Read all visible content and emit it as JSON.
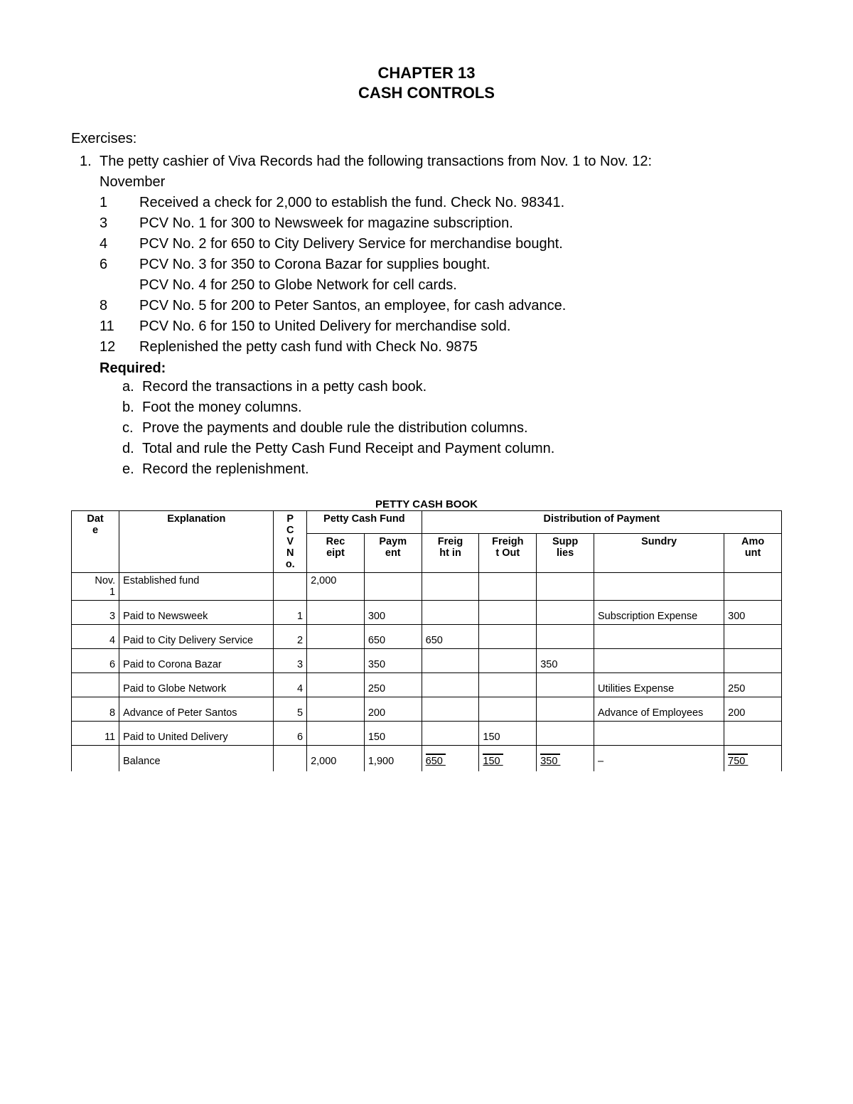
{
  "chapter_title": "CHAPTER 13",
  "chapter_subtitle": "CASH CONTROLS",
  "exercises_label": "Exercises:",
  "exercise": {
    "num": "1.",
    "intro": "The petty cashier of Viva Records had the following transactions from Nov. 1 to Nov. 12:",
    "month": "November",
    "lines": [
      {
        "date": "1",
        "text": "Received a check for 2,000 to establish the fund. Check No. 98341."
      },
      {
        "date": "3",
        "text": "PCV No. 1 for 300 to Newsweek for magazine subscription."
      },
      {
        "date": "4",
        "text": "PCV No. 2 for 650 to City Delivery Service for merchandise bought."
      },
      {
        "date": "6",
        "text": "PCV No. 3 for 350 to Corona Bazar for supplies bought."
      },
      {
        "date": "",
        "text": "PCV No. 4 for 250 to Globe Network for cell cards."
      },
      {
        "date": "8",
        "text": "PCV No. 5 for 200 to Peter Santos, an employee, for cash advance."
      },
      {
        "date": "11",
        "text": "PCV No. 6 for 150 to United Delivery for merchandise sold."
      },
      {
        "date": "12",
        "text": "Replenished the petty cash fund with Check No. 9875"
      }
    ],
    "required_label": "Required:",
    "required": [
      {
        "letter": "a.",
        "text": "Record the transactions in a petty cash book."
      },
      {
        "letter": "b.",
        "text": "Foot the money columns."
      },
      {
        "letter": "c.",
        "text": "Prove the payments and double rule the distribution columns."
      },
      {
        "letter": "d.",
        "text": "Total and rule the Petty Cash Fund Receipt and Payment column."
      },
      {
        "letter": "e.",
        "text": "Record the replenishment."
      }
    ]
  },
  "table": {
    "title": "PETTY CASH BOOK",
    "headers": {
      "date": "Dat\ne",
      "explanation": "Explanation",
      "pcvno": "P\nC\nV\nN\no.",
      "pcf": "Petty Cash Fund",
      "receipt": "Rec\neipt",
      "payment": "Paym\nent",
      "dist": "Distribution of Payment",
      "freight_in": "Freig\nht in",
      "freight_out": "Freigh\nt Out",
      "supplies": "Supp\nlies",
      "sundry": "Sundry",
      "amount": "Amo\nunt"
    },
    "rows": [
      {
        "date": "Nov. 1",
        "exp": "Established fund",
        "pcv": "",
        "receipt": "2,000",
        "payment": "",
        "fi": "",
        "fo": "",
        "sup": "",
        "sundry": "",
        "amt": ""
      },
      {
        "date": "3",
        "exp": "Paid to Newsweek",
        "pcv": "1",
        "receipt": "",
        "payment": "300",
        "fi": "",
        "fo": "",
        "sup": "",
        "sundry": "Subscription Expense",
        "amt": "300"
      },
      {
        "date": "4",
        "exp": "Paid to City Delivery Service",
        "pcv": "2",
        "receipt": "",
        "payment": "650",
        "fi": "650",
        "fo": "",
        "sup": "",
        "sundry": "",
        "amt": ""
      },
      {
        "date": "6",
        "exp": "Paid to Corona Bazar",
        "pcv": "3",
        "receipt": "",
        "payment": "350",
        "fi": "",
        "fo": "",
        "sup": "350",
        "sundry": "",
        "amt": ""
      },
      {
        "date": "",
        "exp": "Paid to Globe Network",
        "pcv": "4",
        "receipt": "",
        "payment": "250",
        "fi": "",
        "fo": "",
        "sup": "",
        "sundry": "Utilities Expense",
        "amt": "250"
      },
      {
        "date": "8",
        "exp": "Advance of Peter Santos",
        "pcv": "5",
        "receipt": "",
        "payment": "200",
        "fi": "",
        "fo": "",
        "sup": "",
        "sundry": "Advance of Employees",
        "amt": "200"
      },
      {
        "date": "11",
        "exp": "Paid to United Delivery",
        "pcv": "6",
        "receipt": "",
        "payment": "150",
        "fi": "",
        "fo": "150",
        "sup": "",
        "sundry": "",
        "amt": ""
      }
    ],
    "totals": {
      "exp": "Balance",
      "receipt": "2,000",
      "payment": "1,900",
      "fi": "650",
      "fo": "150",
      "sup": "350",
      "sundry": "–",
      "amt": "750"
    }
  }
}
